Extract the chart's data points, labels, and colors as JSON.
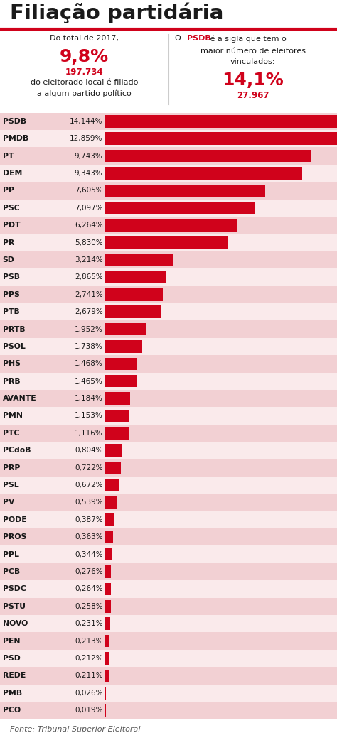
{
  "title": "Filiação partidária",
  "fonte": "Fonte: Tribunal Superior Eleitoral",
  "parties": [
    "PSDB",
    "PMDB",
    "PT",
    "DEM",
    "PP",
    "PSC",
    "PDT",
    "PR",
    "SD",
    "PSB",
    "PPS",
    "PTB",
    "PRTB",
    "PSOL",
    "PHS",
    "PRB",
    "AVANTE",
    "PMN",
    "PTC",
    "PCdoB",
    "PRP",
    "PSL",
    "PV",
    "PODE",
    "PROS",
    "PPL",
    "PCB",
    "PSDC",
    "PSTU",
    "NOVO",
    "PEN",
    "PSD",
    "REDE",
    "PMB",
    "PCO"
  ],
  "values": [
    14.144,
    12.859,
    9.743,
    9.343,
    7.605,
    7.097,
    6.264,
    5.83,
    3.214,
    2.865,
    2.741,
    2.679,
    1.952,
    1.738,
    1.468,
    1.465,
    1.184,
    1.153,
    1.116,
    0.804,
    0.722,
    0.672,
    0.539,
    0.387,
    0.363,
    0.344,
    0.276,
    0.264,
    0.258,
    0.231,
    0.213,
    0.212,
    0.211,
    0.026,
    0.019
  ],
  "labels": [
    "14,144%",
    "12,859%",
    "9,743%",
    "9,343%",
    "7,605%",
    "7,097%",
    "6,264%",
    "5,830%",
    "3,214%",
    "2,865%",
    "2,741%",
    "2,679%",
    "1,952%",
    "1,738%",
    "1,468%",
    "1,465%",
    "1,184%",
    "1,153%",
    "1,116%",
    "0,804%",
    "0,722%",
    "0,672%",
    "0,539%",
    "0,387%",
    "0,363%",
    "0,344%",
    "0,276%",
    "0,264%",
    "0,258%",
    "0,231%",
    "0,213%",
    "0,212%",
    "0,211%",
    "0,026%",
    "0,019%"
  ],
  "bar_color": "#d0021b",
  "bar_bg_even": "#f2d0d3",
  "bar_bg_odd": "#faeaeb",
  "title_color": "#1a1a1a",
  "red_color": "#d0021b",
  "text_color": "#1a1a1a",
  "bg_color": "#ffffff",
  "red_line_color": "#d0021b"
}
